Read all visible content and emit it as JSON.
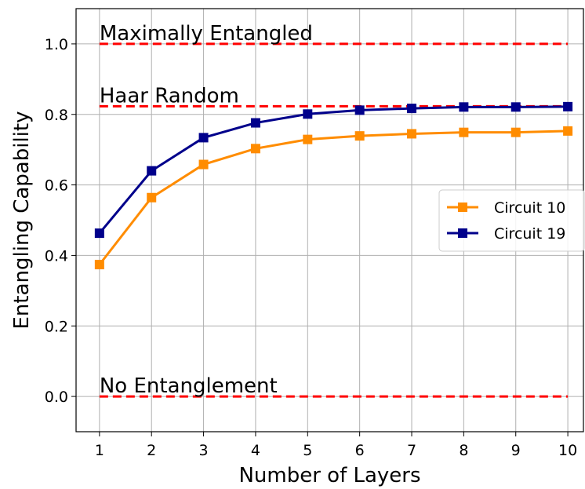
{
  "chart_data": {
    "type": "line",
    "title": "",
    "xlabel": "Number of Layers",
    "ylabel": "Entangling Capability",
    "x": [
      1,
      2,
      3,
      4,
      5,
      6,
      7,
      8,
      9,
      10
    ],
    "x_ticks": [
      "1",
      "2",
      "3",
      "4",
      "5",
      "6",
      "7",
      "8",
      "9",
      "10"
    ],
    "y_ticks": [
      "0.0",
      "0.2",
      "0.4",
      "0.6",
      "0.8",
      "1.0"
    ],
    "xlim": [
      0.55,
      10.3
    ],
    "ylim": [
      -0.1,
      1.1
    ],
    "grid": true,
    "legend_position": "right",
    "series": [
      {
        "name": "Circuit 10",
        "color": "#ff8c00",
        "marker": "square",
        "values": [
          0.374,
          0.564,
          0.658,
          0.703,
          0.729,
          0.739,
          0.745,
          0.749,
          0.749,
          0.753
        ]
      },
      {
        "name": "Circuit 19",
        "color": "#00008b",
        "marker": "square",
        "values": [
          0.463,
          0.64,
          0.734,
          0.776,
          0.801,
          0.812,
          0.817,
          0.821,
          0.821,
          0.822
        ]
      }
    ],
    "reference_lines": [
      {
        "label": "Maximally Entangled",
        "y": 1.0,
        "color": "#ff0000",
        "style": "dashed"
      },
      {
        "label": "Haar Random",
        "y": 0.823,
        "color": "#ff0000",
        "style": "dashed"
      },
      {
        "label": "No Entanglement",
        "y": 0.0,
        "color": "#ff0000",
        "style": "dashed"
      }
    ]
  }
}
